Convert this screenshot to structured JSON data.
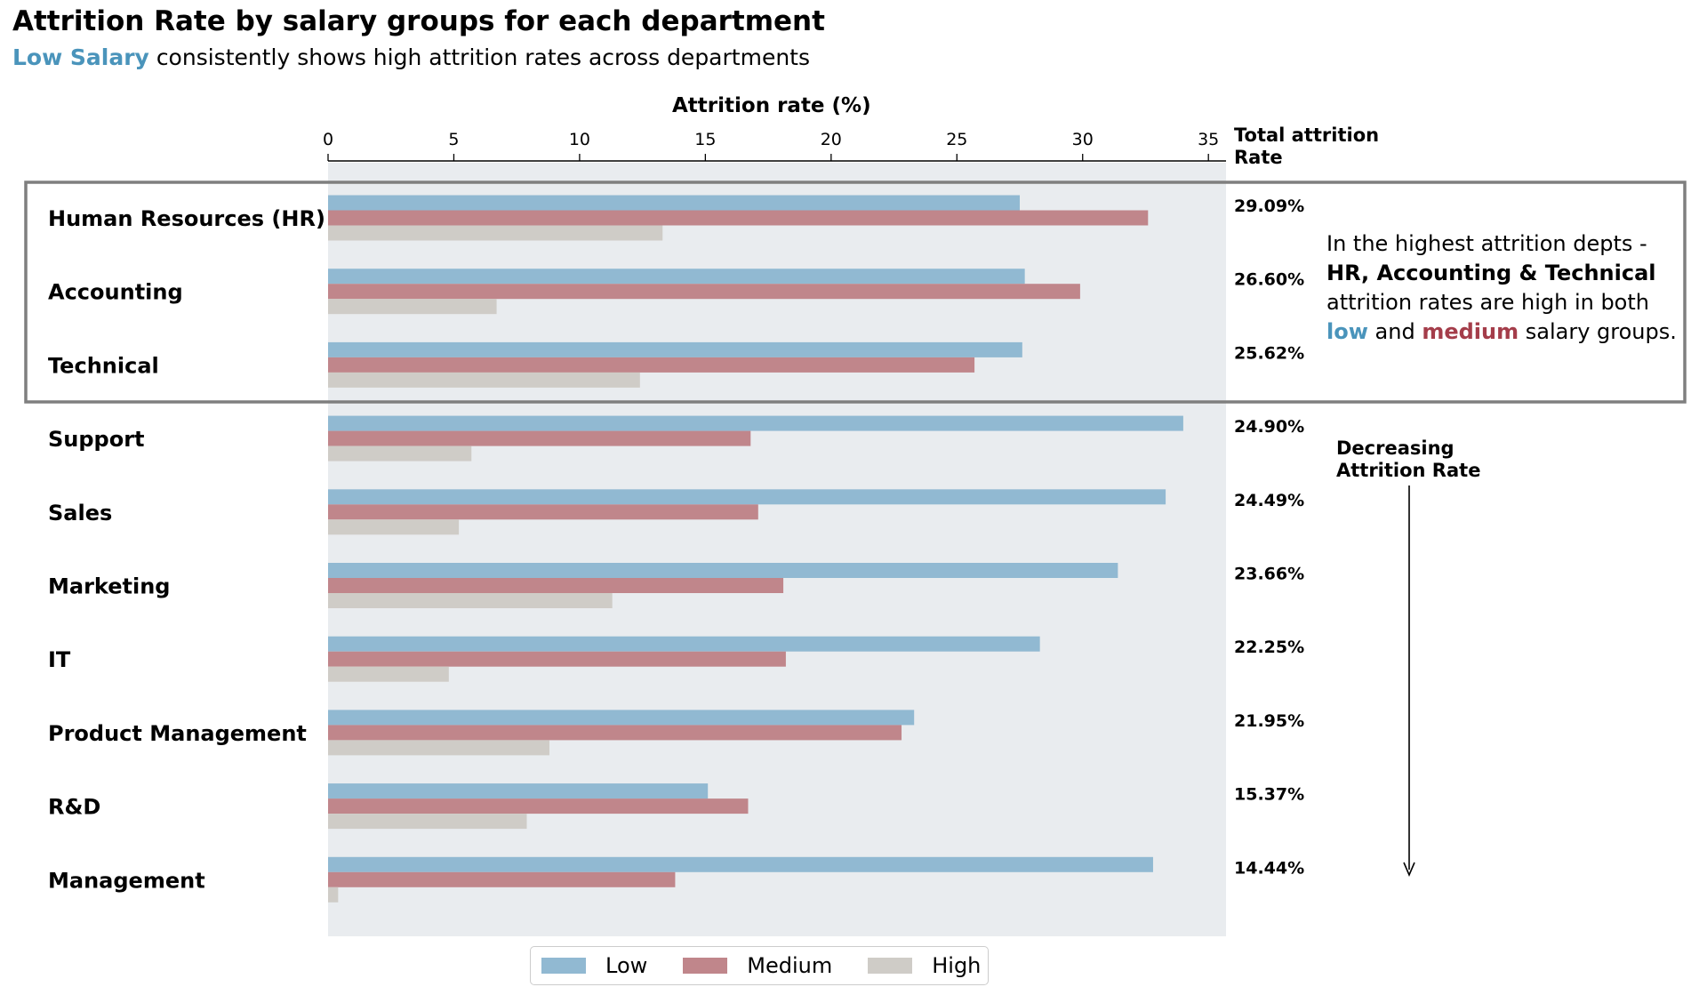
{
  "title": "Attrition Rate by salary groups for each department",
  "subtitle": {
    "highlight": "Low Salary",
    "rest": "consistently shows high attrition rates across departments"
  },
  "colors": {
    "low": "#91b9d2",
    "medium": "#c0868b",
    "high": "#cfccc7",
    "plot_bg": "#e9ecef",
    "highlight_box": "#7f7f7f",
    "low_text": "#4a94bb",
    "medium_text": "#a43d4a"
  },
  "annotation": {
    "line1": "In the highest attrition depts -",
    "line2_bold": "HR, Accounting & Technical",
    "line3": "attrition rates are high in both",
    "word_low": "low",
    "word_and": "and",
    "word_medium": "medium",
    "word_tail": "salary groups."
  },
  "decreasing_label": "Decreasing Attrition Rate",
  "total_header": "Total attrition Rate",
  "chart_data": {
    "type": "bar",
    "orientation": "horizontal",
    "title": "Attrition Rate by salary groups for each department",
    "xlabel": "Attrition rate (%)",
    "xlim": [
      0,
      35.7
    ],
    "xticks": [
      0,
      5,
      10,
      15,
      20,
      25,
      30,
      35
    ],
    "legend_position": "bottom-center",
    "categories": [
      "Human Resources (HR)",
      "Accounting",
      "Technical",
      "Support",
      "Sales",
      "Marketing",
      "IT",
      "Product Management",
      "R&D",
      "Management"
    ],
    "series": [
      {
        "name": "Low",
        "values": [
          27.5,
          27.7,
          27.6,
          34.0,
          33.3,
          31.4,
          28.3,
          23.3,
          15.1,
          32.8
        ]
      },
      {
        "name": "Medium",
        "values": [
          32.6,
          29.9,
          25.7,
          16.8,
          17.1,
          18.1,
          18.2,
          22.8,
          16.7,
          13.8
        ]
      },
      {
        "name": "High",
        "values": [
          13.3,
          6.7,
          12.4,
          5.7,
          5.2,
          11.3,
          4.8,
          8.8,
          7.9,
          0.4
        ]
      }
    ],
    "total_attrition": [
      "29.09%",
      "26.60%",
      "25.62%",
      "24.90%",
      "24.49%",
      "23.66%",
      "22.25%",
      "21.95%",
      "15.37%",
      "14.44%"
    ],
    "highlighted_categories": [
      "Human Resources (HR)",
      "Accounting",
      "Technical"
    ]
  }
}
